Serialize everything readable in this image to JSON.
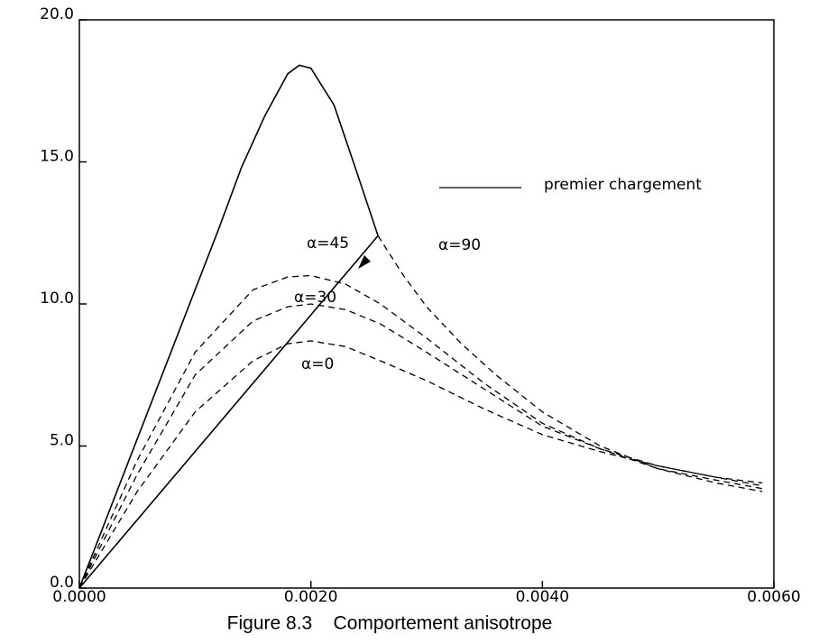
{
  "chart_data": {
    "type": "line",
    "caption": "Figure 8.3    Comportement anisotrope",
    "xlim": [
      0,
      0.006
    ],
    "xticks": [
      {
        "value": 0,
        "label": "0.0000"
      },
      {
        "value": 0.002,
        "label": "0.0020"
      },
      {
        "value": 0.004,
        "label": "0.0040"
      },
      {
        "value": 0.006,
        "label": "0.0060"
      }
    ],
    "ylim": [
      0,
      20
    ],
    "yticks": [
      {
        "value": 0,
        "label": "0.0"
      },
      {
        "value": 5,
        "label": "5.0"
      },
      {
        "value": 10,
        "label": "10.0"
      },
      {
        "value": 15,
        "label": "15.0"
      },
      {
        "value": 20,
        "label": "20.0"
      }
    ],
    "series": [
      {
        "name": "premier chargement",
        "color": "#000000",
        "style": "solid",
        "x": [
          0,
          0.0004,
          0.0008,
          0.0012,
          0.0014,
          0.0016,
          0.0018,
          0.0019,
          0.002,
          0.0022,
          0.0024,
          0.00258
        ],
        "values": [
          0,
          4.2,
          8.4,
          12.6,
          14.8,
          16.6,
          18.1,
          18.4,
          18.3,
          17.0,
          14.6,
          12.4
        ]
      },
      {
        "color": "#000000",
        "style": "solid",
        "x": [
          0,
          0.00258
        ],
        "values": [
          0,
          12.4
        ]
      },
      {
        "color": "#000000",
        "style": "dashed",
        "x": [
          0.00258,
          0.0028,
          0.003,
          0.0033,
          0.0036,
          0.004,
          0.0045,
          0.005,
          0.0055,
          0.0059
        ],
        "values": [
          12.4,
          11.0,
          9.9,
          8.6,
          7.5,
          6.2,
          5.0,
          4.2,
          3.7,
          3.4
        ]
      },
      {
        "color": "#000000",
        "style": "dashed",
        "x": [
          0,
          0.0005,
          0.001,
          0.0015,
          0.0018,
          0.002,
          0.0023,
          0.0026,
          0.003,
          0.0035,
          0.004,
          0.0045,
          0.005,
          0.0055,
          0.0059
        ],
        "values": [
          0,
          4.5,
          8.3,
          10.5,
          10.95,
          11.0,
          10.7,
          10.0,
          8.8,
          7.2,
          5.8,
          4.9,
          4.2,
          3.8,
          3.5
        ]
      },
      {
        "color": "#000000",
        "style": "dashed",
        "x": [
          0,
          0.0005,
          0.001,
          0.0015,
          0.0018,
          0.002,
          0.0023,
          0.0026,
          0.003,
          0.0035,
          0.004,
          0.0045,
          0.005,
          0.0055,
          0.0059
        ],
        "values": [
          0,
          4.0,
          7.5,
          9.4,
          9.9,
          10.0,
          9.8,
          9.3,
          8.3,
          7.0,
          5.7,
          4.9,
          4.3,
          3.9,
          3.6
        ]
      },
      {
        "color": "#000000",
        "style": "dashed",
        "x": [
          0,
          0.0005,
          0.001,
          0.0015,
          0.0018,
          0.002,
          0.0023,
          0.0026,
          0.003,
          0.0035,
          0.004,
          0.0045,
          0.005,
          0.0055,
          0.0059
        ],
        "values": [
          0,
          3.4,
          6.2,
          8.0,
          8.6,
          8.7,
          8.5,
          8.0,
          7.3,
          6.3,
          5.4,
          4.8,
          4.3,
          3.9,
          3.7
        ]
      }
    ],
    "annotations": [
      "α=45",
      "α=90",
      "α=30",
      "α=0"
    ]
  }
}
